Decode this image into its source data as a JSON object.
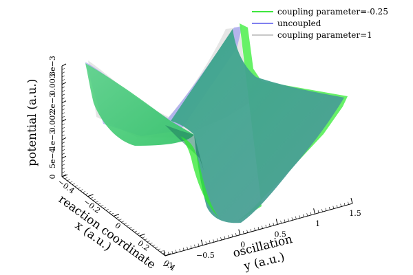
{
  "chart_data": {
    "type": "surface",
    "title": "",
    "series": [
      {
        "name": "coupling parameter=-0.25",
        "color": "#3ee63e"
      },
      {
        "name": "uncoupled",
        "color": "#8080f0"
      },
      {
        "name": "coupling parameter=1",
        "color": "#c8c8c8"
      }
    ],
    "x_axis": {
      "label_lines": [
        "reaction coordinate",
        "x (a.u.)"
      ],
      "range": [
        -0.4,
        0.4
      ],
      "ticks": [
        -0.4,
        -0.2,
        0,
        0.2,
        0.4
      ],
      "tick_labels": [
        "−0.4",
        "−0.2",
        "0",
        "0.2",
        "0.4"
      ]
    },
    "y_axis": {
      "label_lines": [
        "oscillation",
        "y (a.u.)"
      ],
      "range": [
        -1,
        1.5
      ],
      "ticks": [
        -1,
        -0.5,
        0,
        0.5,
        1,
        1.5
      ],
      "tick_labels": [
        "−1",
        "−0.5",
        "0",
        "0.5",
        "1",
        "1.5"
      ]
    },
    "z_axis": {
      "label": "potential (a.u.)",
      "range": [
        0,
        0.003
      ],
      "ticks": [
        0,
        0.0005,
        0.001,
        0.0015,
        0.002,
        0.0025,
        0.003
      ],
      "tick_labels": [
        "0",
        "5e−4",
        "1e−3",
        "0.002",
        "2e−3",
        "0.003",
        "3e−3"
      ]
    },
    "legend_position": "top-right",
    "grid": false
  }
}
